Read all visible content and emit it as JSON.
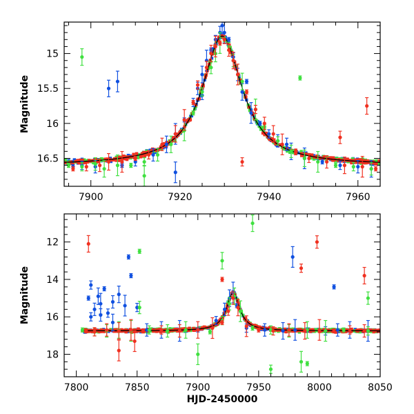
{
  "colors": {
    "blue": "#1050e0",
    "green": "#40e040",
    "red": "#f03020",
    "model": "#000000",
    "frame": "#000000"
  },
  "chart_data": [
    {
      "type": "scatter",
      "panel": "top",
      "title": "",
      "xlabel": "",
      "ylabel": "Magnitude",
      "xlim": [
        7894,
        7965
      ],
      "ylim": [
        16.9,
        14.55
      ],
      "y_inverted": true,
      "xticks": [
        7900,
        7920,
        7940,
        7960
      ],
      "yticks": [
        15,
        15.5,
        16,
        16.5
      ],
      "ytick_labels": [
        "15",
        "15.5",
        "16",
        "16.5"
      ],
      "baseline_mag": 16.6,
      "peak": {
        "x": 7929.5,
        "y": 14.75
      },
      "series": [
        {
          "color": "blue",
          "x": [
            7896,
            7898,
            7901,
            7904,
            7906,
            7907,
            7910,
            7914,
            7917,
            7919,
            7921,
            7923,
            7924,
            7925,
            7926,
            7927,
            7928,
            7929,
            7929.5,
            7930,
            7931,
            7932,
            7933,
            7934,
            7936,
            7938,
            7940,
            7942,
            7945,
            7948,
            7952,
            7956,
            7960,
            7963,
            7919,
            7935,
            7925,
            7944
          ],
          "y": [
            16.62,
            16.6,
            16.62,
            15.5,
            15.4,
            16.6,
            16.55,
            16.45,
            16.3,
            16.15,
            15.95,
            15.7,
            15.5,
            15.3,
            15.1,
            14.95,
            14.8,
            14.7,
            14.6,
            14.7,
            14.8,
            15.05,
            15.3,
            15.55,
            15.85,
            16.0,
            16.15,
            16.25,
            16.4,
            16.5,
            16.55,
            16.6,
            16.62,
            16.65,
            16.7,
            15.4,
            15.6,
            16.3
          ]
        },
        {
          "color": "green",
          "x": [
            7895,
            7898,
            7901,
            7903,
            7906,
            7909,
            7912,
            7915,
            7918,
            7921,
            7923,
            7925,
            7927,
            7928,
            7929,
            7930,
            7931,
            7932,
            7934,
            7937,
            7939,
            7942,
            7945,
            7948,
            7951,
            7955,
            7959,
            7963,
            7898,
            7912,
            7947
          ],
          "y": [
            16.6,
            16.62,
            16.58,
            16.65,
            16.6,
            16.6,
            16.55,
            16.45,
            16.3,
            16.1,
            15.85,
            15.55,
            15.2,
            15.0,
            14.85,
            14.8,
            14.9,
            15.1,
            15.4,
            15.8,
            16.05,
            16.25,
            16.4,
            16.5,
            16.55,
            16.6,
            16.62,
            16.65,
            15.05,
            16.75,
            15.35
          ]
        },
        {
          "color": "red",
          "x": [
            7896,
            7899,
            7902,
            7904,
            7907,
            7910,
            7913,
            7916,
            7919,
            7921,
            7923,
            7924,
            7926,
            7927,
            7928,
            7929,
            7930,
            7931,
            7932,
            7933,
            7935,
            7937,
            7939,
            7941,
            7943,
            7946,
            7949,
            7953,
            7957,
            7961,
            7964,
            7934,
            7956,
            7962
          ],
          "y": [
            16.65,
            16.62,
            16.6,
            16.55,
            16.55,
            16.5,
            16.45,
            16.3,
            16.15,
            15.95,
            15.7,
            15.45,
            15.2,
            15.0,
            14.9,
            14.85,
            14.8,
            14.95,
            15.1,
            15.3,
            15.55,
            15.8,
            16.0,
            16.15,
            16.3,
            16.42,
            16.5,
            16.55,
            16.6,
            16.62,
            16.65,
            16.55,
            16.2,
            15.75
          ]
        }
      ]
    },
    {
      "type": "scatter",
      "panel": "bottom",
      "title": "",
      "xlabel": "HJD-2450000",
      "ylabel": "Magnitude",
      "xlim": [
        7790,
        8050
      ],
      "ylim": [
        19.2,
        10.5
      ],
      "y_inverted": true,
      "xticks": [
        7800,
        7850,
        7900,
        7950,
        8000,
        8050
      ],
      "yticks": [
        12,
        14,
        16,
        18
      ],
      "ytick_labels": [
        "12",
        "14",
        "16",
        "18"
      ],
      "baseline_mag": 16.75,
      "peak": {
        "x": 7929,
        "y": 14.7
      },
      "series": [
        {
          "color": "blue",
          "x": [
            7810,
            7812,
            7815,
            7818,
            7820,
            7823,
            7826,
            7830,
            7835,
            7840,
            7845,
            7850,
            7858,
            7870,
            7885,
            7900,
            7915,
            7922,
            7926,
            7929,
            7932,
            7940,
            7955,
            7970,
            7980,
            7990,
            8005,
            8015,
            8025,
            8040,
            7843,
            7812,
            7820,
            7830,
            7978,
            8012
          ],
          "y": [
            15.0,
            14.3,
            15.6,
            14.9,
            15.3,
            14.5,
            15.8,
            15.2,
            14.8,
            15.4,
            13.8,
            15.5,
            16.7,
            16.7,
            16.75,
            16.7,
            16.2,
            15.6,
            15.0,
            14.7,
            15.4,
            16.6,
            16.7,
            16.75,
            16.7,
            16.7,
            16.75,
            16.7,
            16.7,
            16.75,
            12.8,
            16.0,
            15.9,
            16.3,
            12.8,
            14.4
          ]
        },
        {
          "color": "green",
          "x": [
            7805,
            7815,
            7825,
            7835,
            7845,
            7852,
            7860,
            7875,
            7890,
            7900,
            7910,
            7920,
            7926,
            7930,
            7935,
            7945,
            7960,
            7975,
            7990,
            8005,
            8020,
            8040,
            7852,
            7945,
            7985,
            7990,
            7960,
            8040,
            7920
          ],
          "y": [
            16.7,
            16.8,
            16.75,
            16.7,
            16.75,
            12.5,
            16.7,
            16.75,
            16.7,
            18.0,
            16.8,
            16.2,
            15.3,
            14.9,
            15.7,
            16.6,
            16.7,
            16.75,
            16.7,
            16.75,
            16.7,
            16.75,
            15.5,
            11.0,
            18.4,
            18.5,
            18.8,
            15.0,
            13.0
          ]
        },
        {
          "color": "red",
          "x": [
            7808,
            7815,
            7825,
            7835,
            7845,
            7855,
            7870,
            7885,
            7900,
            7912,
            7920,
            7925,
            7929,
            7933,
            7940,
            7950,
            7962,
            7975,
            7988,
            8000,
            8012,
            8025,
            8037,
            7810,
            7848,
            7920,
            7985,
            7998,
            8037,
            7835
          ],
          "y": [
            16.75,
            16.8,
            16.7,
            16.75,
            16.7,
            16.75,
            16.7,
            16.75,
            16.7,
            16.6,
            16.3,
            15.7,
            15.0,
            15.5,
            16.5,
            16.7,
            16.75,
            16.7,
            16.75,
            16.7,
            16.75,
            16.7,
            16.75,
            12.1,
            17.3,
            14.0,
            13.4,
            12.0,
            13.8,
            17.8
          ]
        }
      ]
    }
  ]
}
